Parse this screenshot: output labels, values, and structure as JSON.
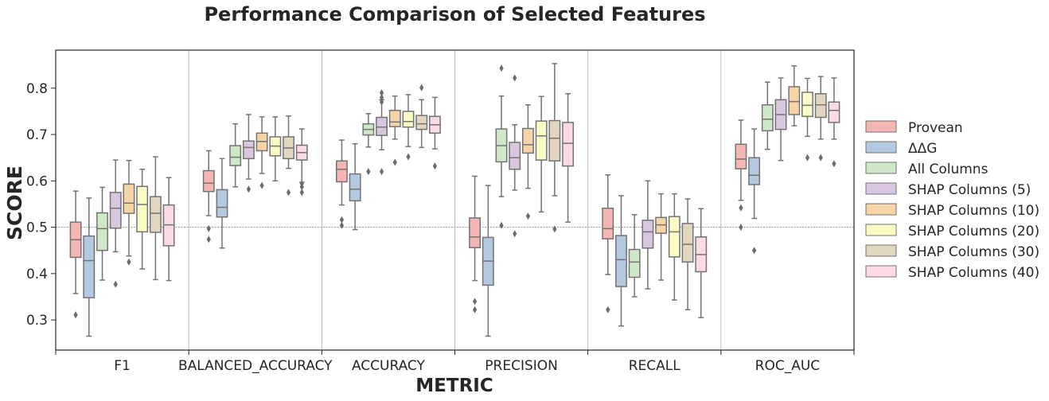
{
  "chart_data": {
    "type": "box",
    "title": "Performance Comparison of Selected Features",
    "xlabel": "METRIC",
    "ylabel": "SCORE",
    "ylim": [
      0.235,
      0.882
    ],
    "yticks": [
      0.3,
      0.4,
      0.5,
      0.6,
      0.7,
      0.8
    ],
    "reference_line": 0.5,
    "grid": false,
    "legend_position": "right",
    "categories": [
      "F1",
      "BALANCED_ACCURACY",
      "ACCURACY",
      "PRECISION",
      "RECALL",
      "ROC_AUC"
    ],
    "series": [
      {
        "name": "Provean",
        "color": "#f4b6b2",
        "boxes": [
          {
            "whislo": 0.357,
            "q1": 0.435,
            "med": 0.473,
            "q3": 0.511,
            "whishi": 0.578,
            "fliers": [
              0.311
            ]
          },
          {
            "whislo": 0.525,
            "q1": 0.577,
            "med": 0.595,
            "q3": 0.622,
            "whishi": 0.665,
            "fliers": [
              0.497,
              0.474
            ]
          },
          {
            "whislo": 0.548,
            "q1": 0.598,
            "med": 0.625,
            "q3": 0.643,
            "whishi": 0.688,
            "fliers": [
              0.516,
              0.504
            ]
          },
          {
            "whislo": 0.385,
            "q1": 0.456,
            "med": 0.479,
            "q3": 0.52,
            "whishi": 0.61,
            "fliers": [
              0.34,
              0.322
            ]
          },
          {
            "whislo": 0.398,
            "q1": 0.475,
            "med": 0.497,
            "q3": 0.541,
            "whishi": 0.613,
            "fliers": [
              0.322
            ]
          },
          {
            "whislo": 0.558,
            "q1": 0.626,
            "med": 0.647,
            "q3": 0.679,
            "whishi": 0.731,
            "fliers": [
              0.542,
              0.5
            ]
          }
        ]
      },
      {
        "name": "ΔΔG",
        "color": "#b3c9df",
        "boxes": [
          {
            "whislo": 0.265,
            "q1": 0.348,
            "med": 0.428,
            "q3": 0.481,
            "whishi": 0.563,
            "fliers": []
          },
          {
            "whislo": 0.455,
            "q1": 0.522,
            "med": 0.543,
            "q3": 0.581,
            "whishi": 0.648,
            "fliers": []
          },
          {
            "whislo": 0.495,
            "q1": 0.557,
            "med": 0.582,
            "q3": 0.615,
            "whishi": 0.68,
            "fliers": []
          },
          {
            "whislo": 0.265,
            "q1": 0.375,
            "med": 0.427,
            "q3": 0.478,
            "whishi": 0.59,
            "fliers": []
          },
          {
            "whislo": 0.287,
            "q1": 0.372,
            "med": 0.43,
            "q3": 0.482,
            "whishi": 0.568,
            "fliers": []
          },
          {
            "whislo": 0.519,
            "q1": 0.592,
            "med": 0.612,
            "q3": 0.65,
            "whishi": 0.712,
            "fliers": [
              0.45
            ]
          }
        ]
      },
      {
        "name": "All Columns",
        "color": "#cfe8c8",
        "boxes": [
          {
            "whislo": 0.386,
            "q1": 0.45,
            "med": 0.497,
            "q3": 0.531,
            "whishi": 0.586,
            "fliers": []
          },
          {
            "whislo": 0.587,
            "q1": 0.633,
            "med": 0.651,
            "q3": 0.676,
            "whishi": 0.723,
            "fliers": []
          },
          {
            "whislo": 0.673,
            "q1": 0.699,
            "med": 0.711,
            "q3": 0.723,
            "whishi": 0.745,
            "fliers": [
              0.62
            ]
          },
          {
            "whislo": 0.566,
            "q1": 0.641,
            "med": 0.676,
            "q3": 0.712,
            "whishi": 0.783,
            "fliers": [
              0.843,
              0.504
            ]
          },
          {
            "whislo": 0.35,
            "q1": 0.392,
            "med": 0.425,
            "q3": 0.452,
            "whishi": 0.527,
            "fliers": []
          },
          {
            "whislo": 0.668,
            "q1": 0.708,
            "med": 0.733,
            "q3": 0.764,
            "whishi": 0.813,
            "fliers": []
          }
        ]
      },
      {
        "name": "SHAP Columns (5)",
        "color": "#d9c7df",
        "boxes": [
          {
            "whislo": 0.447,
            "q1": 0.498,
            "med": 0.541,
            "q3": 0.575,
            "whishi": 0.645,
            "fliers": [
              0.377
            ]
          },
          {
            "whislo": 0.604,
            "q1": 0.648,
            "med": 0.672,
            "q3": 0.686,
            "whishi": 0.743,
            "fliers": [
              0.582
            ]
          },
          {
            "whislo": 0.667,
            "q1": 0.698,
            "med": 0.716,
            "q3": 0.737,
            "whishi": 0.775,
            "fliers": [
              0.79,
              0.78,
              0.77,
              0.62
            ]
          },
          {
            "whislo": 0.58,
            "q1": 0.625,
            "med": 0.65,
            "q3": 0.683,
            "whishi": 0.721,
            "fliers": [
              0.822,
              0.486
            ]
          },
          {
            "whislo": 0.367,
            "q1": 0.455,
            "med": 0.49,
            "q3": 0.515,
            "whishi": 0.6,
            "fliers": []
          },
          {
            "whislo": 0.644,
            "q1": 0.711,
            "med": 0.743,
            "q3": 0.775,
            "whishi": 0.822,
            "fliers": []
          }
        ]
      },
      {
        "name": "SHAP Columns (10)",
        "color": "#f5d5a8",
        "boxes": [
          {
            "whislo": 0.438,
            "q1": 0.53,
            "med": 0.552,
            "q3": 0.593,
            "whishi": 0.644,
            "fliers": [
              0.425
            ]
          },
          {
            "whislo": 0.616,
            "q1": 0.665,
            "med": 0.685,
            "q3": 0.703,
            "whishi": 0.738,
            "fliers": [
              0.59
            ]
          },
          {
            "whislo": 0.69,
            "q1": 0.717,
            "med": 0.727,
            "q3": 0.752,
            "whishi": 0.783,
            "fliers": [
              0.64
            ]
          },
          {
            "whislo": 0.584,
            "q1": 0.66,
            "med": 0.678,
            "q3": 0.713,
            "whishi": 0.764,
            "fliers": [
              0.524
            ]
          },
          {
            "whislo": 0.386,
            "q1": 0.487,
            "med": 0.505,
            "q3": 0.521,
            "whishi": 0.572,
            "fliers": []
          },
          {
            "whislo": 0.719,
            "q1": 0.743,
            "med": 0.771,
            "q3": 0.803,
            "whishi": 0.848,
            "fliers": []
          }
        ]
      },
      {
        "name": "SHAP Columns (20)",
        "color": "#fbfbc5",
        "boxes": [
          {
            "whislo": 0.41,
            "q1": 0.49,
            "med": 0.549,
            "q3": 0.588,
            "whishi": 0.625,
            "fliers": []
          },
          {
            "whislo": 0.6,
            "q1": 0.654,
            "med": 0.675,
            "q3": 0.695,
            "whishi": 0.738,
            "fliers": []
          },
          {
            "whislo": 0.674,
            "q1": 0.716,
            "med": 0.728,
            "q3": 0.75,
            "whishi": 0.786,
            "fliers": [
              0.652
            ]
          },
          {
            "whislo": 0.533,
            "q1": 0.645,
            "med": 0.697,
            "q3": 0.729,
            "whishi": 0.782,
            "fliers": []
          },
          {
            "whislo": 0.343,
            "q1": 0.436,
            "med": 0.49,
            "q3": 0.523,
            "whishi": 0.572,
            "fliers": []
          },
          {
            "whislo": 0.696,
            "q1": 0.739,
            "med": 0.763,
            "q3": 0.791,
            "whishi": 0.821,
            "fliers": [
              0.65
            ]
          }
        ]
      },
      {
        "name": "SHAP Columns (30)",
        "color": "#e2d6be",
        "boxes": [
          {
            "whislo": 0.387,
            "q1": 0.489,
            "med": 0.53,
            "q3": 0.566,
            "whishi": 0.652,
            "fliers": []
          },
          {
            "whislo": 0.627,
            "q1": 0.648,
            "med": 0.671,
            "q3": 0.695,
            "whishi": 0.74,
            "fliers": [
              0.575
            ]
          },
          {
            "whislo": 0.672,
            "q1": 0.711,
            "med": 0.723,
            "q3": 0.741,
            "whishi": 0.775,
            "fliers": [
              0.801
            ]
          },
          {
            "whislo": 0.568,
            "q1": 0.643,
            "med": 0.692,
            "q3": 0.73,
            "whishi": 0.853,
            "fliers": [
              0.496
            ]
          },
          {
            "whislo": 0.322,
            "q1": 0.425,
            "med": 0.463,
            "q3": 0.508,
            "whishi": 0.561,
            "fliers": []
          },
          {
            "whislo": 0.69,
            "q1": 0.737,
            "med": 0.764,
            "q3": 0.788,
            "whishi": 0.825,
            "fliers": [
              0.65
            ]
          }
        ]
      },
      {
        "name": "SHAP Columns (40)",
        "color": "#fbd9e7",
        "boxes": [
          {
            "whislo": 0.385,
            "q1": 0.46,
            "med": 0.505,
            "q3": 0.548,
            "whishi": 0.607,
            "fliers": []
          },
          {
            "whislo": 0.597,
            "q1": 0.645,
            "med": 0.661,
            "q3": 0.677,
            "whishi": 0.712,
            "fliers": [
              0.594,
              0.587,
              0.575
            ]
          },
          {
            "whislo": 0.669,
            "q1": 0.703,
            "med": 0.721,
            "q3": 0.739,
            "whishi": 0.78,
            "fliers": [
              0.632
            ]
          },
          {
            "whislo": 0.511,
            "q1": 0.632,
            "med": 0.681,
            "q3": 0.726,
            "whishi": 0.788,
            "fliers": []
          },
          {
            "whislo": 0.305,
            "q1": 0.404,
            "med": 0.441,
            "q3": 0.479,
            "whishi": 0.54,
            "fliers": []
          },
          {
            "whislo": 0.69,
            "q1": 0.726,
            "med": 0.752,
            "q3": 0.77,
            "whishi": 0.822,
            "fliers": [
              0.637
            ]
          }
        ]
      }
    ]
  }
}
